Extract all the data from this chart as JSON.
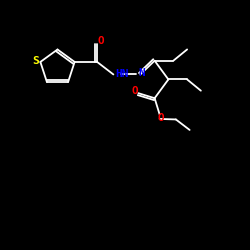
{
  "background_color": "#000000",
  "bond_color": "#ffffff",
  "atom_colors": {
    "S": "#ffff00",
    "O": "#ff0000",
    "N": "#0000ff",
    "H": "#ffffff",
    "C": "#ffffff"
  },
  "figsize": [
    2.5,
    2.5
  ],
  "dpi": 100,
  "lw": 1.3,
  "fontsize": 7.5
}
